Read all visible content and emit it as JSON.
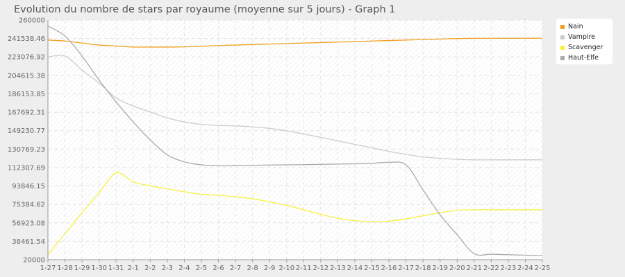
{
  "title": "Evolution du nombre de stars par royaume (moyenne sur 5 jours) - Graph 1",
  "chart_data": {
    "type": "line",
    "title": "Evolution du nombre de stars par royaume (moyenne sur 5 jours) - Graph 1",
    "xlabel": "",
    "ylabel": "",
    "ylim": [
      20000,
      260000
    ],
    "yticks": [
      "20000",
      "38461.54",
      "56923.08",
      "75384.62",
      "93846.15",
      "112307.69",
      "130769.23",
      "149230.77",
      "167692.31",
      "186153.85",
      "204615.38",
      "223076.92",
      "241538.46",
      "260000"
    ],
    "x": [
      "1-27",
      "1-28",
      "1-29",
      "1-30",
      "1-31",
      "2-1",
      "2-2",
      "2-3",
      "2-4",
      "2-5",
      "2-6",
      "2-7",
      "2-8",
      "2-9",
      "2-10",
      "2-11",
      "2-12",
      "2-13",
      "2-14",
      "2-15",
      "2-16",
      "2-17",
      "2-18",
      "2-19",
      "2-20",
      "2-21",
      "2-22",
      "2-23",
      "2-24",
      "2-25"
    ],
    "grid": true,
    "legend_position": "top-right",
    "series": [
      {
        "name": "Nain",
        "color": "#f0a01e",
        "values": [
          240000,
          239000,
          237000,
          235000,
          234000,
          233000,
          233000,
          233000,
          233200,
          233800,
          234500,
          235000,
          235500,
          236000,
          236500,
          237000,
          237500,
          238000,
          238500,
          239000,
          239500,
          240000,
          240500,
          241000,
          241500,
          241800,
          241800,
          241800,
          241800,
          241800
        ]
      },
      {
        "name": "Vampire",
        "color": "#cccccc",
        "values": [
          223000,
          224000,
          210000,
          197000,
          182000,
          174000,
          168000,
          162000,
          158000,
          155500,
          154500,
          154000,
          153000,
          151500,
          149000,
          146000,
          142500,
          139000,
          135500,
          132000,
          128500,
          125500,
          123000,
          121500,
          120500,
          120000,
          120000,
          120000,
          120000,
          120000
        ]
      },
      {
        "name": "Scavenger",
        "color": "#f7f042",
        "values": [
          25000,
          46000,
          67000,
          87000,
          107000,
          98000,
          94000,
          91000,
          88000,
          85500,
          84500,
          83000,
          81000,
          78000,
          74500,
          70000,
          65500,
          61500,
          59000,
          58000,
          58500,
          61000,
          64000,
          67000,
          69500,
          70000,
          70000,
          70000,
          70000,
          70000
        ]
      },
      {
        "name": "Haut-Elfe",
        "color": "#aaaaaa",
        "values": [
          254000,
          244000,
          224000,
          200000,
          178000,
          158000,
          140000,
          125000,
          118000,
          115000,
          114000,
          114200,
          114500,
          114800,
          115000,
          115200,
          115500,
          115800,
          116000,
          116500,
          117500,
          115000,
          90000,
          65000,
          45000,
          26000,
          25500,
          25000,
          24500,
          24000
        ]
      }
    ]
  }
}
